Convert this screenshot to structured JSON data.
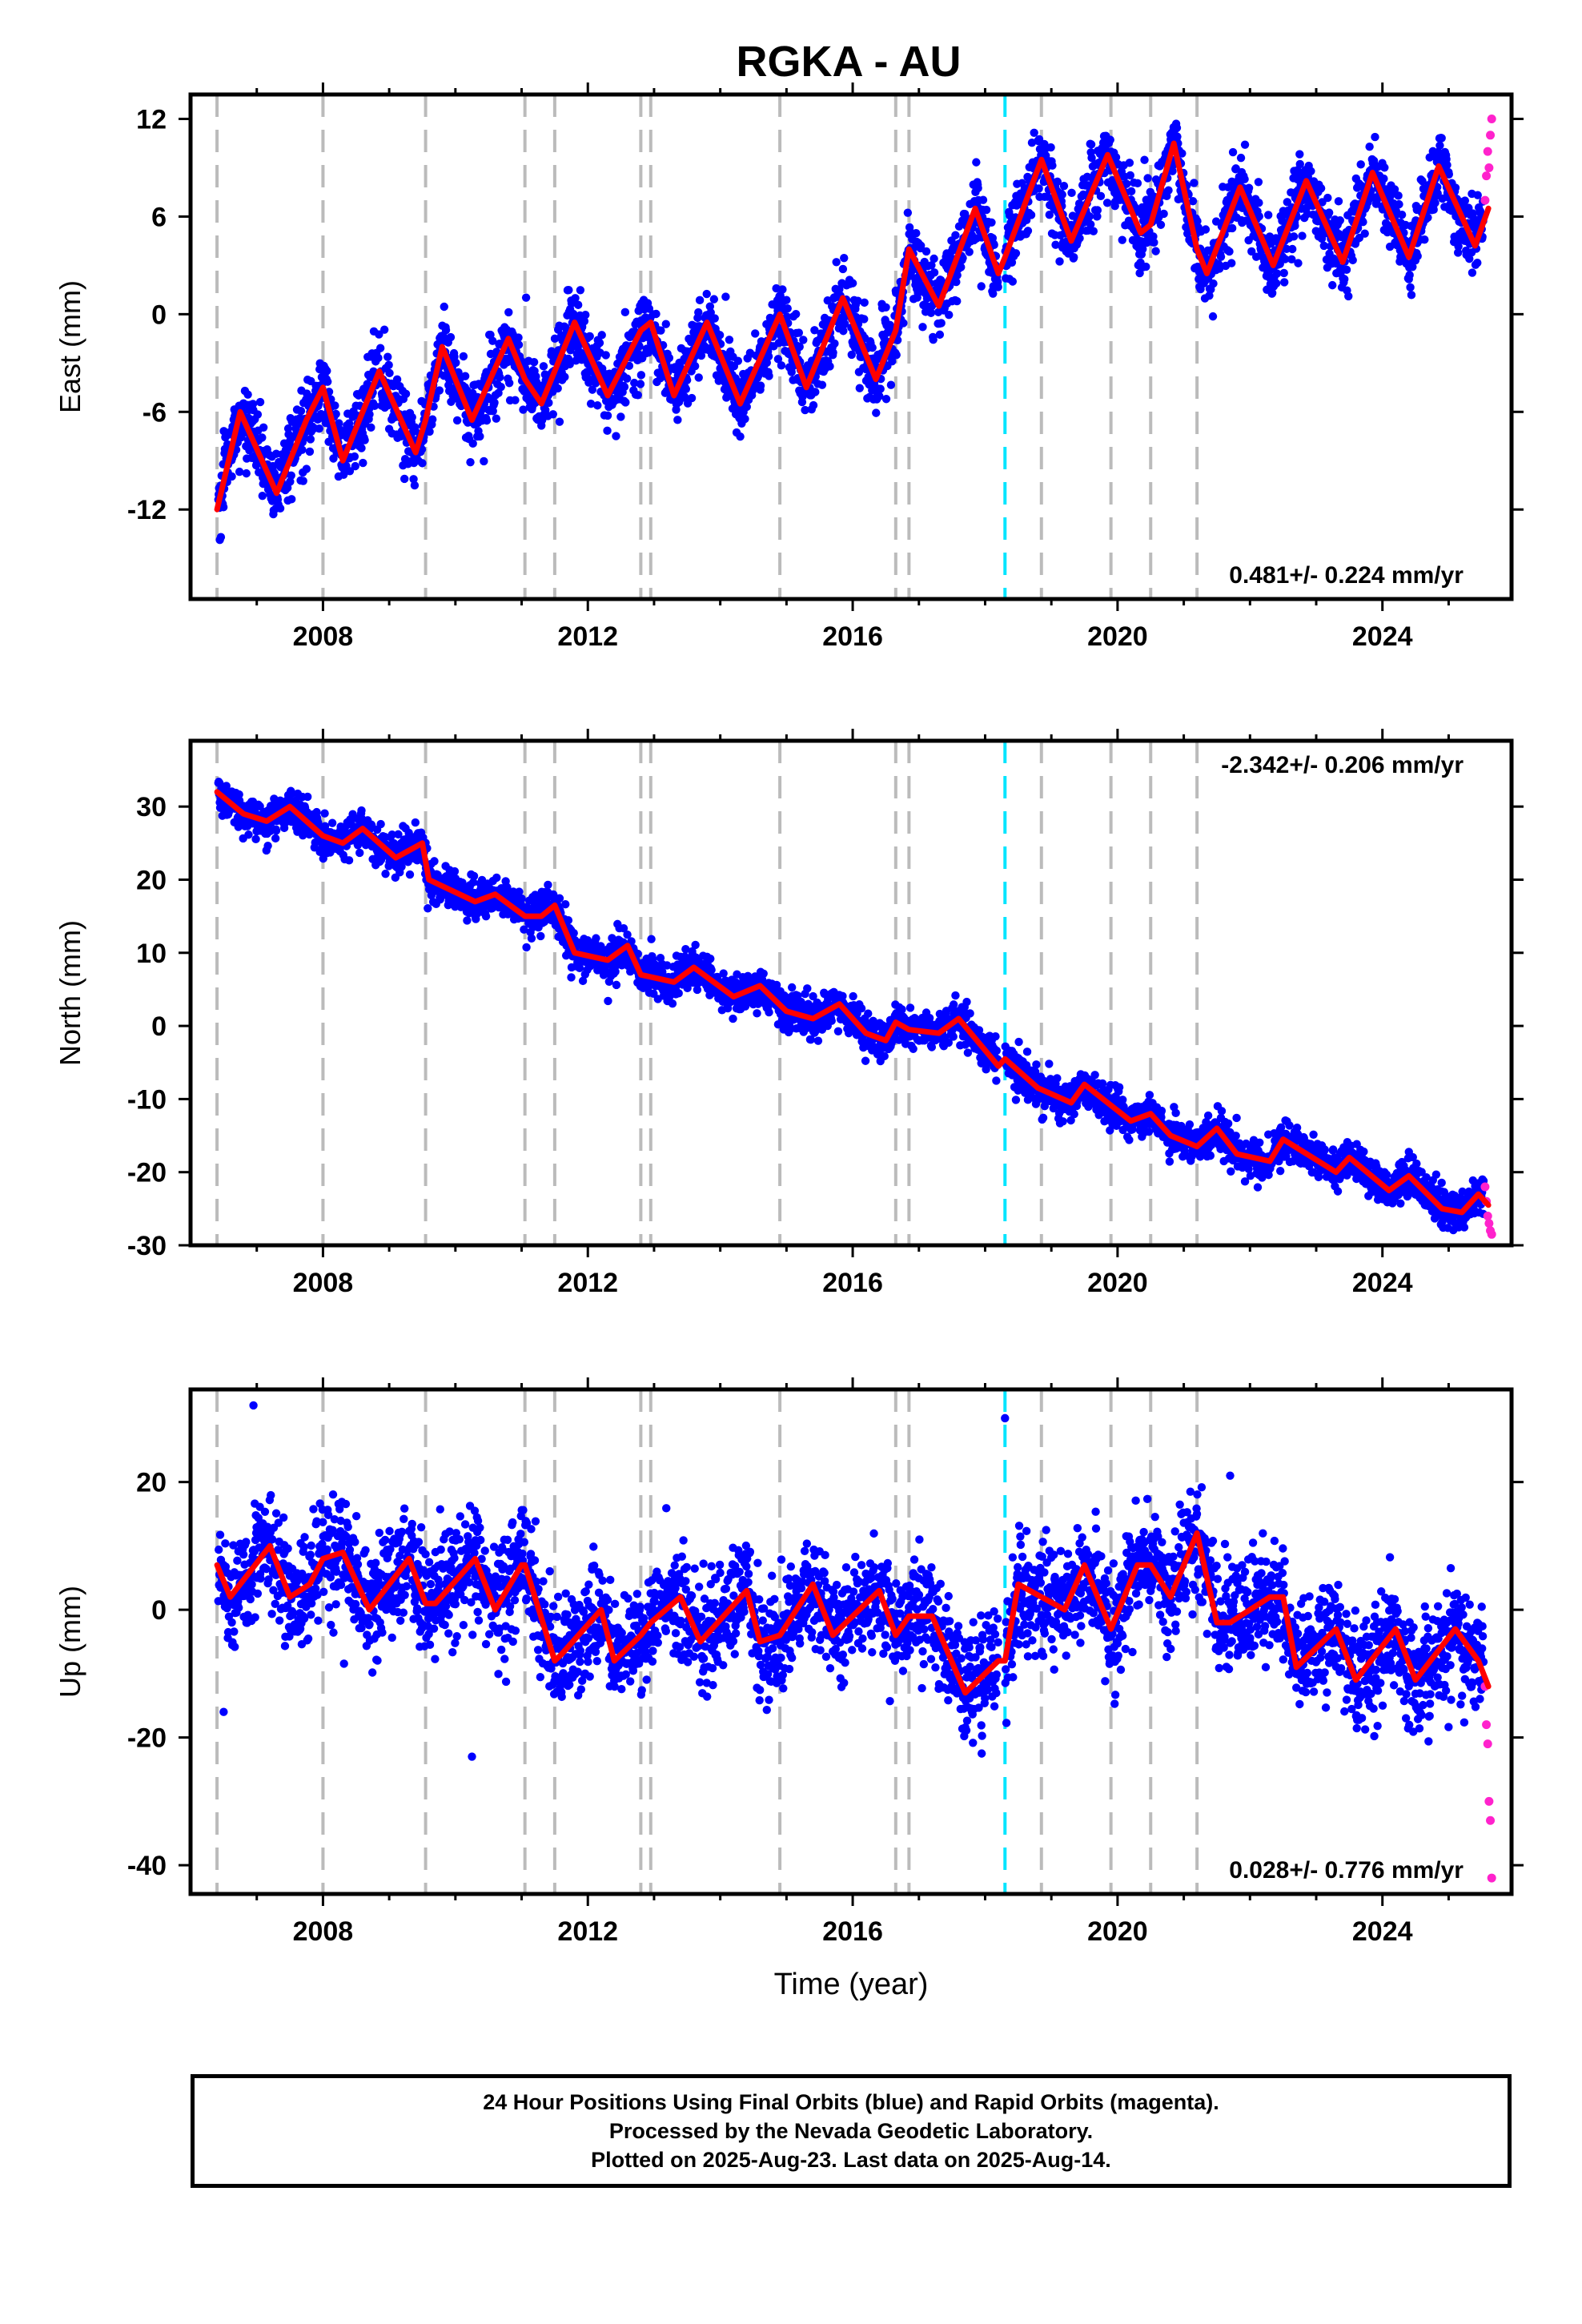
{
  "colors": {
    "final": "#0000ff",
    "rapid": "#ff22cc",
    "model": "#ff0000",
    "equipment": "#bbbbbb",
    "event": "#00e5ff"
  },
  "chart_data": {
    "type": "scatter",
    "title": "RGKA - AU",
    "xlabel": "Time (year)",
    "xlim": [
      2006.0,
      2025.95
    ],
    "xticks": [
      2008,
      2012,
      2016,
      2020,
      2024
    ],
    "equipment_change_lines": [
      2006.4,
      2008.0,
      2009.55,
      2011.05,
      2011.5,
      2012.8,
      2012.95,
      2014.9,
      2016.65,
      2016.85,
      2018.85,
      2019.9,
      2020.5,
      2021.2
    ],
    "event_line": 2018.3,
    "panels": [
      {
        "name": "east",
        "ylabel": "East (mm)",
        "ylim": [
          -17.5,
          13.5
        ],
        "yticks": [
          -12,
          -6,
          0,
          6,
          12
        ],
        "rate": "0.481+/- 0.224 mm/yr",
        "rate_position": "bottom-right",
        "model_series": {
          "name": "",
          "x": [
            2006.4,
            2006.75,
            2007.3,
            2007.75,
            2008.0,
            2008.3,
            2008.85,
            2009.4,
            2009.55,
            2009.8,
            2010.25,
            2010.8,
            2011.05,
            2011.3,
            2011.8,
            2012.3,
            2012.8,
            2012.95,
            2013.3,
            2013.8,
            2014.3,
            2014.9,
            2015.3,
            2015.85,
            2016.35,
            2016.65,
            2016.85,
            2017.3,
            2017.85,
            2018.2,
            2018.3,
            2018.85,
            2019.3,
            2019.85,
            2020.35,
            2020.5,
            2020.85,
            2021.2,
            2021.35,
            2021.85,
            2022.35,
            2022.85,
            2023.4,
            2023.85,
            2024.4,
            2024.85,
            2025.4,
            2025.6
          ],
          "y": [
            -12,
            -6,
            -11,
            -6.5,
            -4.5,
            -9,
            -3.5,
            -8.5,
            -6.5,
            -2,
            -6.5,
            -1.5,
            -4,
            -5.5,
            -0.5,
            -5,
            -1,
            -0.5,
            -5,
            -0.5,
            -5.5,
            0,
            -4.5,
            1,
            -4,
            -1,
            4,
            0.5,
            6.5,
            2.5,
            3.5,
            9.5,
            4.5,
            9.8,
            5,
            5.5,
            10.5,
            4,
            2.5,
            7.8,
            3,
            8.2,
            3.2,
            8.7,
            3.5,
            9.1,
            4.2,
            6.5
          ]
        },
        "rapid_points": {
          "x": [
            2025.55,
            2025.57,
            2025.59,
            2025.61,
            2025.63,
            2025.65
          ],
          "y": [
            7,
            8.5,
            10,
            9,
            11,
            12
          ]
        }
      },
      {
        "name": "north",
        "ylabel": "North (mm)",
        "ylim": [
          -30,
          39
        ],
        "yticks": [
          -30,
          -20,
          -10,
          0,
          10,
          20,
          30
        ],
        "rate": "-2.342+/- 0.206 mm/yr",
        "rate_position": "top-right",
        "model_series": {
          "name": "",
          "x": [
            2006.4,
            2006.8,
            2007.15,
            2007.5,
            2008.0,
            2008.3,
            2008.6,
            2009.1,
            2009.5,
            2009.6,
            2010.3,
            2010.6,
            2011.05,
            2011.3,
            2011.5,
            2011.8,
            2012.3,
            2012.6,
            2012.8,
            2013.3,
            2013.6,
            2014.2,
            2014.6,
            2015.0,
            2015.4,
            2015.8,
            2016.2,
            2016.5,
            2016.65,
            2016.85,
            2017.3,
            2017.6,
            2018.2,
            2018.3,
            2018.8,
            2019.3,
            2019.5,
            2020.2,
            2020.5,
            2020.8,
            2021.2,
            2021.5,
            2021.8,
            2022.3,
            2022.5,
            2023.3,
            2023.5,
            2024.1,
            2024.4,
            2024.9,
            2025.2,
            2025.45,
            2025.6
          ],
          "y": [
            32,
            29,
            28,
            30,
            26,
            25,
            27,
            23,
            25,
            20,
            17,
            18,
            15,
            15,
            16.5,
            10,
            9,
            11,
            7,
            6,
            8,
            4,
            5.5,
            2,
            1,
            3,
            -1,
            -2,
            0.5,
            -0.5,
            -1,
            1,
            -5.5,
            -4.5,
            -8.5,
            -10.5,
            -8,
            -13,
            -12,
            -15,
            -16.5,
            -14,
            -17.5,
            -18.5,
            -15.5,
            -20,
            -18,
            -22.5,
            -20.5,
            -25,
            -25.5,
            -23,
            -24.5
          ]
        },
        "rapid_points": {
          "x": [
            2025.55,
            2025.57,
            2025.59,
            2025.61,
            2025.63,
            2025.65
          ],
          "y": [
            -22,
            -24,
            -26,
            -27,
            -28,
            -28.5
          ]
        }
      },
      {
        "name": "up",
        "ylabel": "Up (mm)",
        "ylim": [
          -44.5,
          34.5
        ],
        "yticks": [
          -40,
          -20,
          0,
          20
        ],
        "rate": "0.028+/- 0.776 mm/yr",
        "rate_position": "bottom-right",
        "model_series": {
          "name": "",
          "x": [
            2006.4,
            2006.6,
            2007.2,
            2007.5,
            2007.8,
            2008.0,
            2008.3,
            2008.7,
            2009.3,
            2009.55,
            2009.7,
            2010.3,
            2010.6,
            2011.0,
            2011.05,
            2011.5,
            2011.6,
            2012.2,
            2012.4,
            2012.8,
            2012.95,
            2013.4,
            2013.7,
            2014.4,
            2014.6,
            2014.9,
            2015.4,
            2015.7,
            2016.4,
            2016.65,
            2016.85,
            2017.2,
            2017.7,
            2018.2,
            2018.3,
            2018.5,
            2019.2,
            2019.5,
            2019.9,
            2020.3,
            2020.5,
            2020.8,
            2021.2,
            2021.5,
            2021.7,
            2022.3,
            2022.5,
            2022.7,
            2023.3,
            2023.6,
            2024.2,
            2024.5,
            2025.1,
            2025.45,
            2025.6
          ],
          "y": [
            7,
            2,
            10,
            2,
            4,
            8,
            9,
            0,
            8,
            1,
            1,
            8,
            0,
            7,
            7,
            -8,
            -7,
            0,
            -8,
            -4,
            -2,
            2,
            -5,
            3,
            -5,
            -4,
            4,
            -4,
            3,
            -4,
            -1,
            -1,
            -13,
            -8,
            -8,
            4,
            0,
            7,
            -3,
            7,
            7,
            2,
            12,
            -2,
            -2,
            2,
            2,
            -9,
            -3,
            -11,
            -3,
            -11,
            -3,
            -8,
            -12
          ]
        },
        "outliers": {
          "x": [
            2006.95,
            2018.3,
            2010.25,
            2006.5,
            2021.7
          ],
          "y": [
            32,
            30,
            -23,
            -16,
            21
          ]
        },
        "rapid_points": {
          "x": [
            2025.55,
            2025.57,
            2025.59,
            2025.61,
            2025.63,
            2025.65
          ],
          "y": [
            -12,
            -18,
            -21,
            -30,
            -33,
            -42
          ]
        }
      }
    ]
  },
  "footer": {
    "line1": "24 Hour Positions Using Final Orbits (blue) and Rapid Orbits (magenta).",
    "line2": "Processed by the Nevada Geodetic Laboratory.",
    "line3": "Plotted on 2025-Aug-23. Last data on 2025-Aug-14."
  }
}
